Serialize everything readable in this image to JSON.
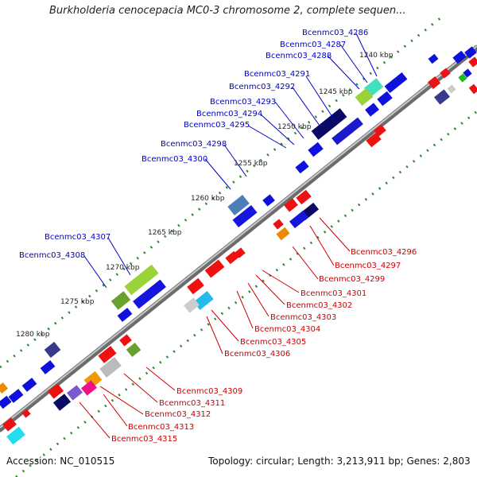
{
  "header": {
    "title": "Burkholderia cenocepacia MC0-3 chromosome 2, complete sequen..."
  },
  "footer": {
    "accession": "Accession: NC_010515",
    "topology": "Topology: circular; Length: 3,213,911 bp; Genes: 2,803"
  },
  "colors": {
    "upper_labels": "#0000cc",
    "lower_labels": "#cc0000",
    "backbone": "#7f7f7f",
    "ticks": "#2a8a2a"
  },
  "scale_ticks": [
    "1240 kbp",
    "1245 kbp",
    "1250 kbp",
    "1255 kbp",
    "1260 kbp",
    "1265 kbp",
    "1270 kbp",
    "1275 kbp",
    "1280 kbp"
  ],
  "upper_genes": [
    "Bcenmc03_4286",
    "Bcenmc03_4287",
    "Bcenmc03_4288",
    "Bcenmc03_4291",
    "Bcenmc03_4292",
    "Bcenmc03_4293",
    "Bcenmc03_4294",
    "Bcenmc03_4295",
    "Bcenmc03_4298",
    "Bcenmc03_4300",
    "Bcenmc03_4307",
    "Bcenmc03_4308"
  ],
  "lower_genes": [
    "Bcenmc03_4296",
    "Bcenmc03_4297",
    "Bcenmc03_4299",
    "Bcenmc03_4301",
    "Bcenmc03_4302",
    "Bcenmc03_4303",
    "Bcenmc03_4304",
    "Bcenmc03_4305",
    "Bcenmc03_4306",
    "Bcenmc03_4309",
    "Bcenmc03_4311",
    "Bcenmc03_4312",
    "Bcenmc03_4313",
    "Bcenmc03_4315"
  ]
}
